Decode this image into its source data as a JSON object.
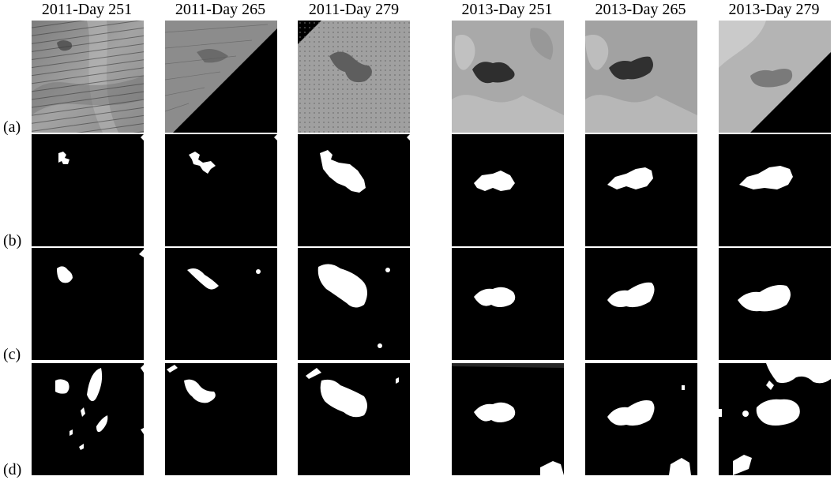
{
  "figure": {
    "columns": [
      "2011-Day 251",
      "2011-Day 265",
      "2011-Day 279",
      "2013-Day 251",
      "2013-Day 265",
      "2013-Day 279"
    ],
    "rows": [
      "(a)",
      "(b)",
      "(c)",
      "(d)"
    ]
  },
  "colors": {
    "mask_foreground": "#ffffff",
    "mask_background": "#000000",
    "imagery_2011": "#8f8f8f",
    "imagery_2013": "#a8a8a8",
    "water_dark": "#2a2a2a"
  }
}
